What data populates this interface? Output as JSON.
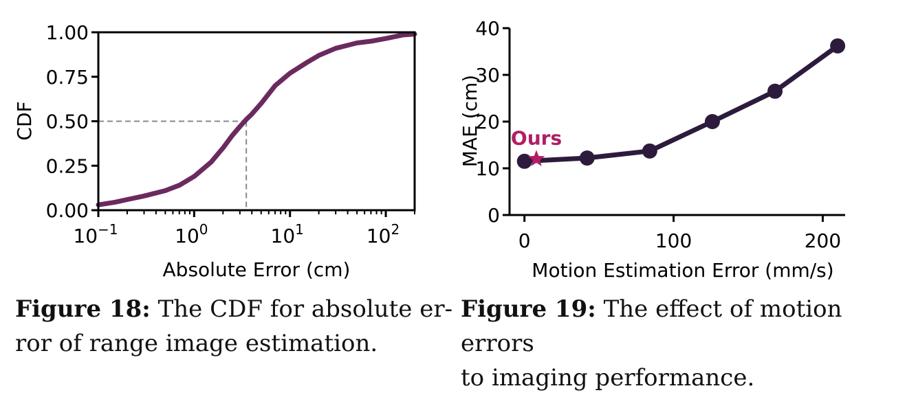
{
  "chart_data": [
    {
      "type": "line",
      "title": "",
      "xlabel": "Absolute Error (cm)",
      "ylabel": "CDF",
      "xscale": "log",
      "xlim": [
        0.1,
        200
      ],
      "ylim": [
        0,
        1
      ],
      "xticks": [
        {
          "base": "10",
          "exp": "−1",
          "value": 0.1
        },
        {
          "base": "10",
          "exp": "0",
          "value": 1
        },
        {
          "base": "10",
          "exp": "1",
          "value": 10
        },
        {
          "base": "10",
          "exp": "2",
          "value": 100
        }
      ],
      "yticks": [
        {
          "label": "0.00",
          "value": 0
        },
        {
          "label": "0.25",
          "value": 0.25
        },
        {
          "label": "0.50",
          "value": 0.5
        },
        {
          "label": "0.75",
          "value": 0.75
        },
        {
          "label": "1.00",
          "value": 1
        }
      ],
      "series": [
        {
          "name": "CDF",
          "color": "#6b2a5f",
          "x": [
            0.1,
            0.15,
            0.2,
            0.3,
            0.5,
            0.7,
            1.0,
            1.5,
            2.0,
            2.5,
            3.0,
            3.5,
            4.0,
            5.0,
            7.0,
            10.0,
            15.0,
            20.0,
            30.0,
            50.0,
            70.0,
            100.0,
            150.0,
            200.0
          ],
          "y": [
            0.03,
            0.045,
            0.06,
            0.08,
            0.11,
            0.14,
            0.19,
            0.27,
            0.35,
            0.42,
            0.47,
            0.51,
            0.54,
            0.6,
            0.7,
            0.77,
            0.83,
            0.87,
            0.91,
            0.94,
            0.95,
            0.965,
            0.985,
            0.99
          ]
        }
      ],
      "reference": {
        "x": 3.5,
        "y": 0.5,
        "style": "dashed",
        "color": "#888888"
      }
    },
    {
      "type": "line",
      "title": "",
      "xlabel": "Motion Estimation Error (mm/s)",
      "ylabel": "MAE (cm)",
      "xlim": [
        -10,
        215
      ],
      "ylim": [
        0,
        40
      ],
      "xticks": [
        {
          "label": "0",
          "value": 0
        },
        {
          "label": "100",
          "value": 100
        },
        {
          "label": "200",
          "value": 200
        }
      ],
      "yticks": [
        {
          "label": "0",
          "value": 0
        },
        {
          "label": "10",
          "value": 10
        },
        {
          "label": "20",
          "value": 20
        },
        {
          "label": "30",
          "value": 30
        },
        {
          "label": "40",
          "value": 40
        }
      ],
      "series": [
        {
          "name": "MAE",
          "color": "#2d1b3d",
          "x": [
            0,
            42,
            84,
            126,
            168,
            210
          ],
          "y": [
            11.5,
            12.2,
            13.7,
            20.0,
            26.5,
            36.2
          ]
        }
      ],
      "annotation": {
        "label": "Ours",
        "x": 8,
        "y": 12.0,
        "color": "#b01e66"
      }
    }
  ],
  "captions": [
    {
      "label": "Figure 18:",
      "line1": "The CDF for absolute er-",
      "line2": "ror of range image estimation."
    },
    {
      "label": "Figure 19:",
      "line1": "The effect of motion errors",
      "line2": "to imaging performance."
    }
  ]
}
